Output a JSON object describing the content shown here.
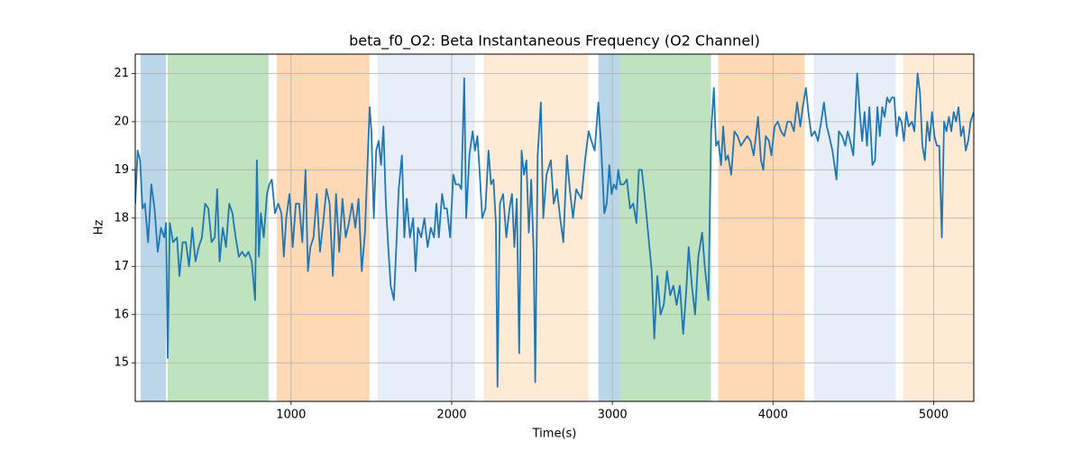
{
  "chart_data": {
    "type": "line",
    "title": "beta_f0_O2: Beta Instantaneous Frequency (O2 Channel)",
    "x_label": "Time(s)",
    "y_label": "Hz",
    "xlim": [
      30,
      5250
    ],
    "ylim": [
      14.2,
      21.4
    ],
    "xticks": [
      1000,
      2000,
      3000,
      4000,
      5000
    ],
    "yticks": [
      15,
      16,
      17,
      18,
      19,
      20,
      21
    ],
    "grid": true,
    "color": "#1f77b4",
    "spans": [
      {
        "start": 64,
        "end": 221,
        "color": "#1f77b4"
      },
      {
        "start": 232,
        "end": 860,
        "color": "#2ca02c"
      },
      {
        "start": 910,
        "end": 1488,
        "color": "#ff7f0e"
      },
      {
        "start": 1539,
        "end": 2144,
        "color": "#aec7e8"
      },
      {
        "start": 2200,
        "end": 2851,
        "color": "#ffbb78"
      },
      {
        "start": 2913,
        "end": 3047,
        "color": "#1f77b4"
      },
      {
        "start": 3047,
        "end": 3614,
        "color": "#2ca02c"
      },
      {
        "start": 3659,
        "end": 4197,
        "color": "#ff7f0e"
      },
      {
        "start": 4253,
        "end": 4764,
        "color": "#aec7e8"
      },
      {
        "start": 4809,
        "end": 5250,
        "color": "#ffbb78"
      }
    ],
    "x": [
      30,
      45,
      60,
      75,
      90,
      110,
      130,
      150,
      170,
      190,
      210,
      222,
      232,
      245,
      265,
      290,
      305,
      325,
      345,
      365,
      385,
      405,
      425,
      445,
      465,
      485,
      505,
      525,
      540,
      555,
      575,
      595,
      615,
      635,
      655,
      675,
      695,
      715,
      735,
      755,
      776,
      787,
      800,
      812,
      830,
      850,
      865,
      880,
      900,
      920,
      940,
      955,
      970,
      990,
      1010,
      1030,
      1050,
      1070,
      1090,
      1105,
      1120,
      1140,
      1160,
      1180,
      1200,
      1220,
      1240,
      1260,
      1280,
      1300,
      1320,
      1340,
      1360,
      1380,
      1400,
      1420,
      1440,
      1460,
      1489,
      1500,
      1515,
      1530,
      1545,
      1560,
      1575,
      1590,
      1605,
      1620,
      1640,
      1655,
      1670,
      1690,
      1705,
      1720,
      1740,
      1760,
      1775,
      1790,
      1810,
      1830,
      1850,
      1870,
      1890,
      1905,
      1920,
      1940,
      1955,
      1970,
      1990,
      2010,
      2025,
      2045,
      2060,
      2078,
      2090,
      2110,
      2130,
      2145,
      2160,
      2175,
      2190,
      2210,
      2229,
      2245,
      2260,
      2275,
      2285,
      2300,
      2320,
      2340,
      2360,
      2375,
      2390,
      2405,
      2420,
      2435,
      2450,
      2465,
      2480,
      2495,
      2510,
      2520,
      2535,
      2555,
      2570,
      2590,
      2617,
      2635,
      2655,
      2675,
      2695,
      2717,
      2735,
      2755,
      2775,
      2790,
      2807,
      2830,
      2852,
      2870,
      2890,
      2913,
      2930,
      2950,
      2965,
      2981,
      2995,
      3010,
      3025,
      3037,
      3050,
      3070,
      3090,
      3110,
      3130,
      3150,
      3165,
      3183,
      3200,
      3228,
      3245,
      3261,
      3280,
      3300,
      3320,
      3340,
      3360,
      3380,
      3400,
      3420,
      3441,
      3460,
      3475,
      3495,
      3515,
      3535,
      3559,
      3575,
      3598,
      3615,
      3632,
      3645,
      3660,
      3677,
      3690,
      3705,
      3720,
      3740,
      3760,
      3780,
      3800,
      3820,
      3840,
      3860,
      3880,
      3907,
      3925,
      3940,
      3955,
      3975,
      3990,
      4010,
      4030,
      4050,
      4070,
      4090,
      4110,
      4130,
      4150,
      4170,
      4185,
      4205,
      4220,
      4240,
      4260,
      4280,
      4300,
      4317,
      4335,
      4350,
      4370,
      4395,
      4410,
      4430,
      4450,
      4465,
      4480,
      4500,
      4524,
      4540,
      4555,
      4570,
      4585,
      4600,
      4619,
      4635,
      4650,
      4665,
      4680,
      4695,
      4710,
      4725,
      4740,
      4755,
      4770,
      4785,
      4800,
      4815,
      4830,
      4845,
      4865,
      4880,
      4900,
      4915,
      4930,
      4945,
      4960,
      4975,
      4990,
      5005,
      5020,
      5035,
      5051,
      5065,
      5080,
      5095,
      5110,
      5125,
      5140,
      5155,
      5170,
      5185,
      5200,
      5215,
      5230,
      5250
    ],
    "values": [
      18.3,
      19.4,
      19.2,
      18.2,
      18.3,
      17.5,
      18.7,
      18.2,
      17.3,
      17.8,
      17.6,
      17.9,
      15.1,
      17.9,
      17.5,
      17.6,
      16.8,
      17.5,
      17.5,
      17.0,
      17.8,
      17.1,
      17.4,
      17.6,
      18.3,
      18.2,
      17.5,
      17.6,
      18.6,
      17.1,
      17.8,
      17.4,
      18.3,
      18.1,
      17.6,
      17.2,
      17.3,
      17.2,
      17.3,
      17.1,
      16.3,
      19.2,
      17.2,
      18.1,
      17.6,
      18.5,
      18.7,
      18.8,
      18.1,
      18.3,
      18.1,
      17.2,
      18.0,
      18.5,
      17.4,
      18.3,
      18.3,
      17.5,
      19.0,
      16.9,
      17.4,
      17.6,
      18.5,
      17.3,
      17.9,
      18.6,
      18.3,
      16.8,
      18.5,
      17.3,
      18.4,
      17.6,
      17.9,
      18.3,
      17.8,
      18.4,
      16.9,
      17.7,
      20.3,
      19.8,
      18.0,
      19.4,
      19.6,
      19.1,
      19.9,
      18.3,
      17.4,
      16.6,
      16.3,
      17.4,
      18.6,
      19.3,
      17.6,
      18.4,
      17.6,
      18.0,
      16.9,
      17.8,
      17.6,
      18.0,
      17.4,
      17.8,
      17.6,
      18.3,
      17.6,
      18.5,
      18.2,
      18.2,
      17.6,
      18.9,
      18.7,
      18.7,
      18.6,
      20.9,
      18.0,
      19.3,
      19.8,
      19.4,
      19.7,
      18.9,
      18.0,
      18.2,
      19.4,
      18.7,
      18.8,
      17.9,
      14.5,
      18.3,
      18.5,
      17.6,
      18.2,
      18.5,
      17.4,
      18.4,
      15.2,
      19.4,
      18.9,
      19.2,
      17.7,
      18.8,
      17.3,
      14.6,
      19.3,
      20.4,
      18.0,
      18.9,
      19.2,
      18.3,
      18.6,
      18.0,
      17.5,
      19.3,
      18.6,
      18.0,
      18.6,
      18.5,
      18.4,
      19.2,
      19.8,
      19.6,
      19.4,
      20.4,
      19.5,
      18.1,
      18.3,
      19.1,
      18.5,
      18.7,
      18.6,
      19.0,
      18.7,
      18.7,
      18.8,
      18.2,
      18.3,
      17.9,
      19.0,
      19.0,
      18.5,
      17.5,
      16.9,
      15.5,
      16.8,
      16.0,
      16.2,
      16.9,
      16.4,
      16.6,
      16.2,
      16.6,
      15.6,
      16.5,
      17.4,
      16.6,
      16.0,
      17.2,
      17.7,
      17.0,
      16.3,
      19.8,
      20.7,
      19.5,
      19.6,
      19.1,
      19.9,
      19.2,
      19.3,
      18.9,
      19.8,
      19.7,
      19.5,
      19.6,
      19.7,
      19.6,
      19.3,
      20.1,
      19.2,
      19.0,
      19.7,
      19.6,
      19.3,
      19.9,
      20.0,
      19.8,
      19.7,
      20.0,
      20.0,
      19.8,
      20.4,
      19.9,
      20.3,
      20.7,
      20.2,
      19.7,
      19.8,
      19.6,
      20.0,
      20.4,
      19.9,
      19.7,
      19.4,
      18.8,
      19.8,
      19.7,
      19.5,
      19.8,
      19.6,
      19.3,
      21.0,
      20.2,
      19.6,
      20.2,
      19.5,
      20.3,
      19.1,
      19.2,
      20.3,
      19.7,
      20.3,
      20.1,
      20.5,
      20.4,
      20.5,
      20.5,
      19.7,
      20.1,
      20.0,
      19.6,
      20.2,
      19.9,
      20.0,
      19.8,
      21.0,
      20.6,
      19.5,
      19.2,
      20.0,
      19.6,
      20.2,
      19.7,
      19.5,
      19.5,
      17.6,
      20.0,
      19.8,
      20.1,
      19.8,
      20.2,
      20.0,
      20.3,
      19.7,
      19.9,
      19.4,
      19.6,
      20.0,
      20.2
    ]
  }
}
